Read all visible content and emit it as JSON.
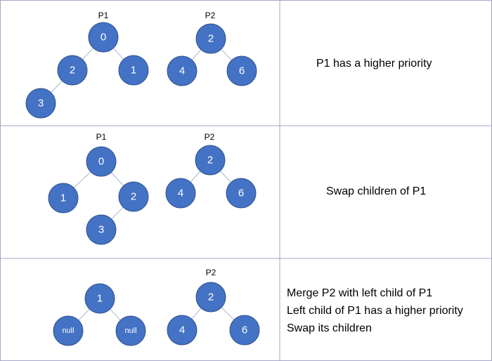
{
  "rows": [
    {
      "caption_lines": [
        "P1 has a higher priority"
      ],
      "heaps": [
        {
          "label": "P1",
          "nodes": [
            "0",
            "2",
            "1",
            "3"
          ]
        },
        {
          "label": "P2",
          "nodes": [
            "2",
            "4",
            "6"
          ]
        }
      ]
    },
    {
      "caption_lines": [
        "Swap children of P1"
      ],
      "heaps": [
        {
          "label": "P1",
          "nodes": [
            "0",
            "1",
            "2",
            "3"
          ]
        },
        {
          "label": "P2",
          "nodes": [
            "2",
            "4",
            "6"
          ]
        }
      ]
    },
    {
      "caption_lines": [
        "Merge P2 with left child of P1",
        "Left child of P1 has a higher priority",
        "Swap its children"
      ],
      "heaps": [
        {
          "label": "",
          "nodes": [
            "1",
            "null",
            "null"
          ]
        },
        {
          "label": "P2",
          "nodes": [
            "2",
            "4",
            "6"
          ]
        }
      ]
    }
  ],
  "colors": {
    "node_fill": "#4472c4",
    "node_stroke": "#2f528f",
    "grid": "#a6a6c8",
    "edge": "#b4c0d4"
  }
}
